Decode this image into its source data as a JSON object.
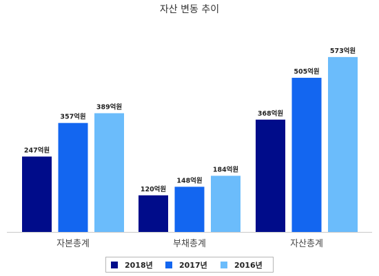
{
  "chart_data": {
    "type": "bar",
    "title": "자산 변동 추이",
    "categories": [
      "자본총계",
      "부채총계",
      "자산총계"
    ],
    "series": [
      {
        "name": "2018년",
        "values": [
          247,
          120,
          368
        ],
        "color": "#000c8a"
      },
      {
        "name": "2017년",
        "values": [
          357,
          148,
          505
        ],
        "color": "#1366f0"
      },
      {
        "name": "2016년",
        "values": [
          389,
          184,
          573
        ],
        "color": "#6bbcfb"
      }
    ],
    "value_suffix": "억원",
    "xlabel": "",
    "ylabel": "",
    "ylim": [
      0,
      600
    ],
    "grid": false,
    "legend": "bottom"
  }
}
